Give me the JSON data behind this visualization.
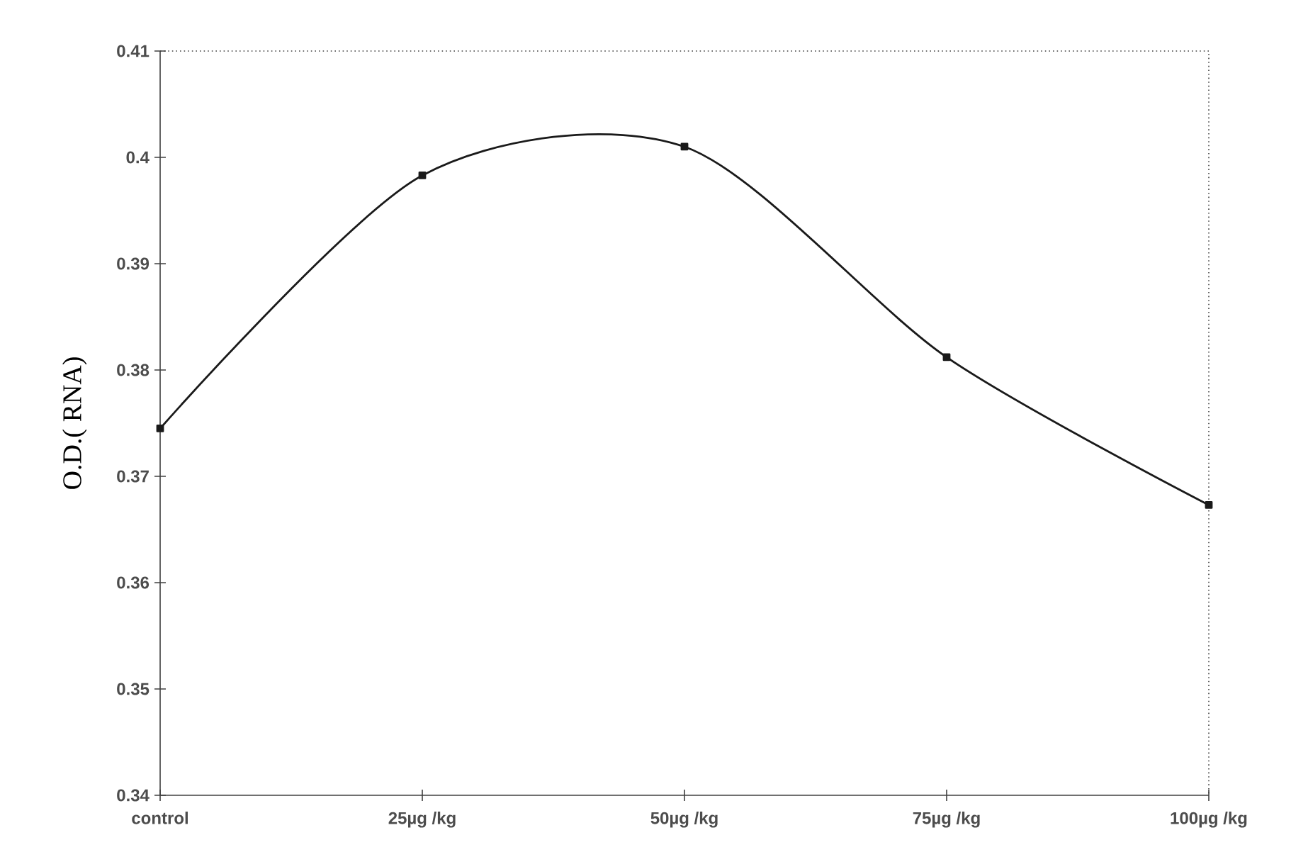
{
  "chart_data": {
    "type": "line",
    "ylabel": "O.D.( RNA)",
    "categories": [
      "control",
      "25µg /kg",
      "50µg /kg",
      "75µg /kg",
      "100µg /kg"
    ],
    "series": [
      {
        "color": "#1a1a1a",
        "values": [
          0.3745,
          0.3983,
          0.401,
          0.3812,
          0.3673
        ]
      }
    ],
    "ylim": [
      0.34,
      0.41
    ],
    "yticks": [
      0.34,
      0.35,
      0.36,
      0.37,
      0.38,
      0.39,
      0.4,
      0.41
    ],
    "marker": "square",
    "line_style": "solid",
    "grid": false
  }
}
